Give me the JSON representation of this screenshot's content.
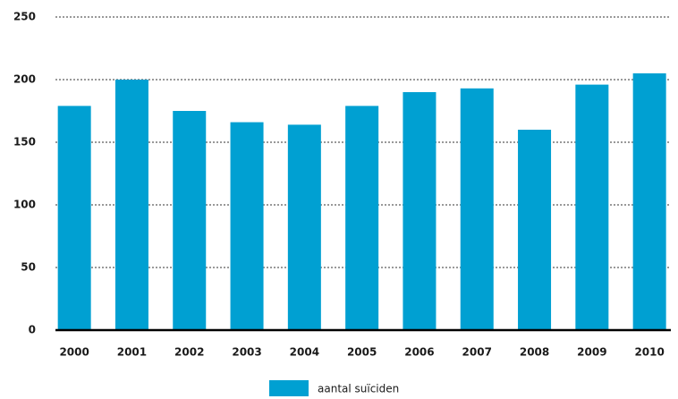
{
  "chart_data": {
    "type": "bar",
    "categories": [
      "2000",
      "2001",
      "2002",
      "2003",
      "2004",
      "2005",
      "2006",
      "2007",
      "2008",
      "2009",
      "2010"
    ],
    "series": [
      {
        "name": "aantal suïciden",
        "color": "#00a0d2",
        "values": [
          179,
          200,
          175,
          166,
          164,
          179,
          190,
          193,
          160,
          196,
          205
        ]
      }
    ],
    "ylim": [
      0,
      250
    ],
    "yticks": [
      0,
      50,
      100,
      150,
      200,
      250
    ],
    "grid": true,
    "legend": "bottom"
  }
}
